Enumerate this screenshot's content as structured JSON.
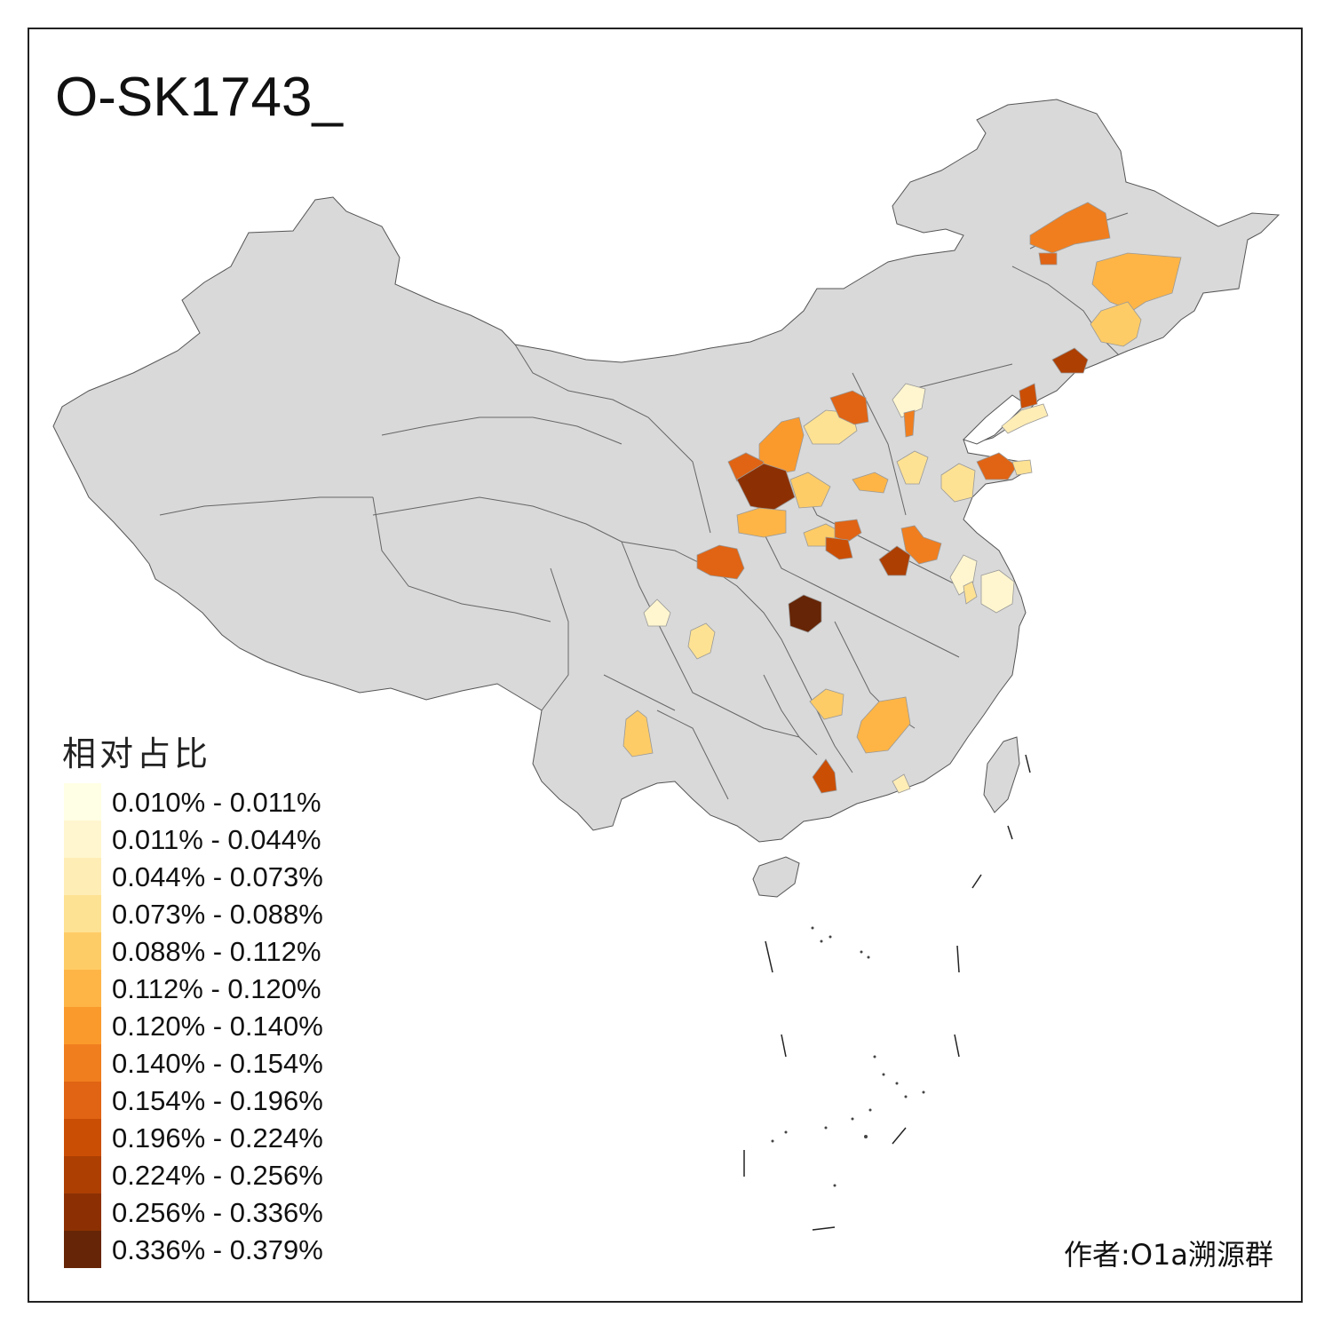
{
  "title": "O-SK1743_",
  "legend": {
    "title": "相对占比",
    "items": [
      {
        "label": "0.010% - 0.011%",
        "color": "#FFFFE5"
      },
      {
        "label": "0.011% - 0.044%",
        "color": "#FFF6CF"
      },
      {
        "label": "0.044% - 0.073%",
        "color": "#FFEDB6"
      },
      {
        "label": "0.073% - 0.088%",
        "color": "#FEE293"
      },
      {
        "label": "0.088% - 0.112%",
        "color": "#FECC66"
      },
      {
        "label": "0.112% - 0.120%",
        "color": "#FEB546"
      },
      {
        "label": "0.120% - 0.140%",
        "color": "#FB9A2C"
      },
      {
        "label": "0.140% - 0.154%",
        "color": "#F07E1E"
      },
      {
        "label": "0.154% - 0.196%",
        "color": "#E06414"
      },
      {
        "label": "0.196% - 0.224%",
        "color": "#CB4E05"
      },
      {
        "label": "0.224% - 0.256%",
        "color": "#AD3F03"
      },
      {
        "label": "0.256% - 0.336%",
        "color": "#8C3004"
      },
      {
        "label": "0.336% - 0.379%",
        "color": "#662506"
      }
    ]
  },
  "credit": "作者:O1a溯源群",
  "map": {
    "base_color": "#D9D9D9",
    "border_color": "#555555"
  }
}
